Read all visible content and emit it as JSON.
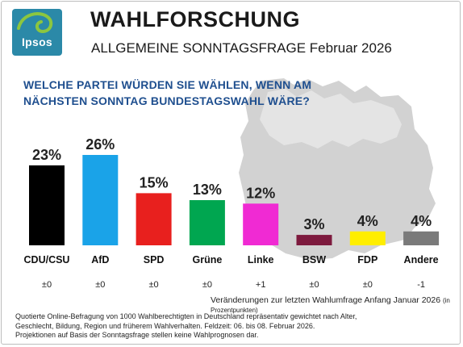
{
  "brand": {
    "logo_text": "Ipsos"
  },
  "header": {
    "title": "WAHLFORSCHUNG",
    "subtitle": "ALLGEMEINE SONNTAGSFRAGE Februar 2026"
  },
  "question": "WELCHE PARTEI WÜRDEN SIE WÄHLEN, WENN AM NÄCHSTEN SONNTAG BUNDESTAGSWAHL WÄRE?",
  "chart_data": {
    "type": "bar",
    "categories": [
      "CDU/CSU",
      "AfD",
      "SPD",
      "Grüne",
      "Linke",
      "BSW",
      "FDP",
      "Andere"
    ],
    "values": [
      23,
      26,
      15,
      13,
      12,
      3,
      4,
      4
    ],
    "value_labels": [
      "23%",
      "26%",
      "15%",
      "13%",
      "12%",
      "3%",
      "4%",
      "4%"
    ],
    "changes": [
      "±0",
      "±0",
      "±0",
      "±0",
      "+1",
      "±0",
      "±0",
      "-1"
    ],
    "colors": [
      "#000000",
      "#1aa3e8",
      "#e8201e",
      "#00a650",
      "#f02ad3",
      "#7d1a3e",
      "#ffee00",
      "#7a7a7a"
    ],
    "ylim": [
      0,
      26
    ],
    "title": "",
    "xlabel": "",
    "ylabel": ""
  },
  "footnote": {
    "text": "Veränderungen zur letzten Wahlumfrage Anfang Januar 2026",
    "unit": "(in Prozentpunkten)"
  },
  "method": {
    "line1": "Quotierte Online-Befragung von 1000 Wahlberechtigten in Deutschland repräsentativ gewichtet nach Alter,",
    "line2": "Geschlecht, Bildung, Region und früherem Wahlverhalten.  Feldzeit: 06. bis 08. Februar 2026.",
    "line3": "Projektionen auf Basis der Sonntagsfrage stellen keine Wahlprognosen dar."
  }
}
